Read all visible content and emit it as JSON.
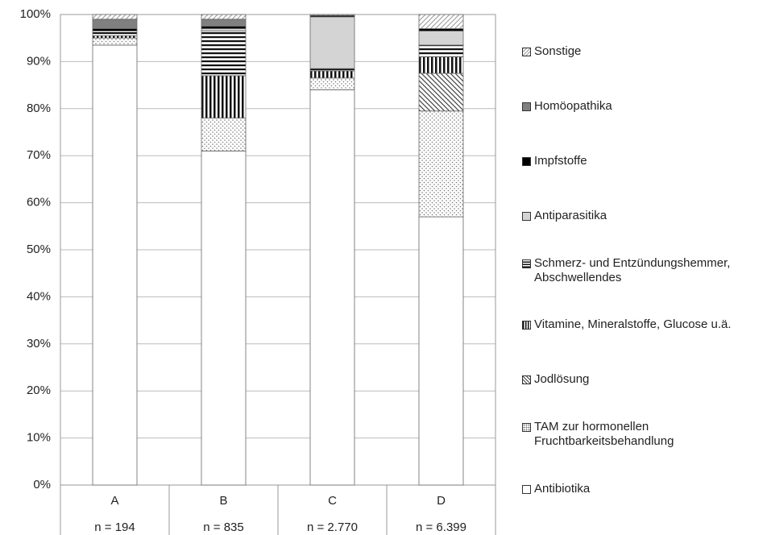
{
  "chart_data": {
    "type": "stacked_bar",
    "categories": [
      "A",
      "B",
      "C",
      "D"
    ],
    "sample_sizes": [
      "n = 194",
      "n = 835",
      "n = 2.770",
      "n = 6.399"
    ],
    "series": [
      {
        "name": "Antibiotika",
        "color": "#ffffff",
        "pattern": "none",
        "values": [
          93.5,
          71,
          84,
          57
        ]
      },
      {
        "name": "TAM zur hormonellen Fruchtbarkeitsbehandlung",
        "color": "#888888",
        "pattern": "dots",
        "values": [
          1.5,
          7,
          2.5,
          22.5
        ]
      },
      {
        "name": "Jodlösung",
        "color": "#555555",
        "pattern": "diagonal",
        "values": [
          0,
          0,
          0,
          8
        ]
      },
      {
        "name": "Vitamine, Mineralstoffe, Glucose u.ä.",
        "color": "#111111",
        "pattern": "vertical",
        "values": [
          0.5,
          9,
          1.5,
          3.5
        ]
      },
      {
        "name": "Schmerz- und Entzündungshemmer, Abschwellendes",
        "color": "#111111",
        "pattern": "horizontal",
        "values": [
          1,
          9.5,
          0.5,
          2.5
        ]
      },
      {
        "name": "Antiparasitika",
        "color": "#d4d4d4",
        "pattern": "solid",
        "values": [
          0,
          0.5,
          11,
          3
        ]
      },
      {
        "name": "Impfstoffe",
        "color": "#000000",
        "pattern": "solid",
        "values": [
          0.5,
          0.5,
          0.3,
          0.5
        ]
      },
      {
        "name": "Homöopathika",
        "color": "#808080",
        "pattern": "solid",
        "values": [
          2,
          1.5,
          0,
          0
        ]
      },
      {
        "name": "Sonstige",
        "color": "#999999",
        "pattern": "hatch",
        "values": [
          1,
          1,
          0.2,
          3
        ]
      }
    ],
    "ylim": [
      0,
      100
    ],
    "yticks": [
      {
        "value": 0,
        "label": "0%"
      },
      {
        "value": 10,
        "label": "10%"
      },
      {
        "value": 20,
        "label": "20%"
      },
      {
        "value": 30,
        "label": "30%"
      },
      {
        "value": 40,
        "label": "40%"
      },
      {
        "value": 50,
        "label": "50%"
      },
      {
        "value": 60,
        "label": "60%"
      },
      {
        "value": 70,
        "label": "70%"
      },
      {
        "value": 80,
        "label": "80%"
      },
      {
        "value": 90,
        "label": "90%"
      },
      {
        "value": 100,
        "label": "100%"
      }
    ],
    "grid": true,
    "legend": "right"
  }
}
